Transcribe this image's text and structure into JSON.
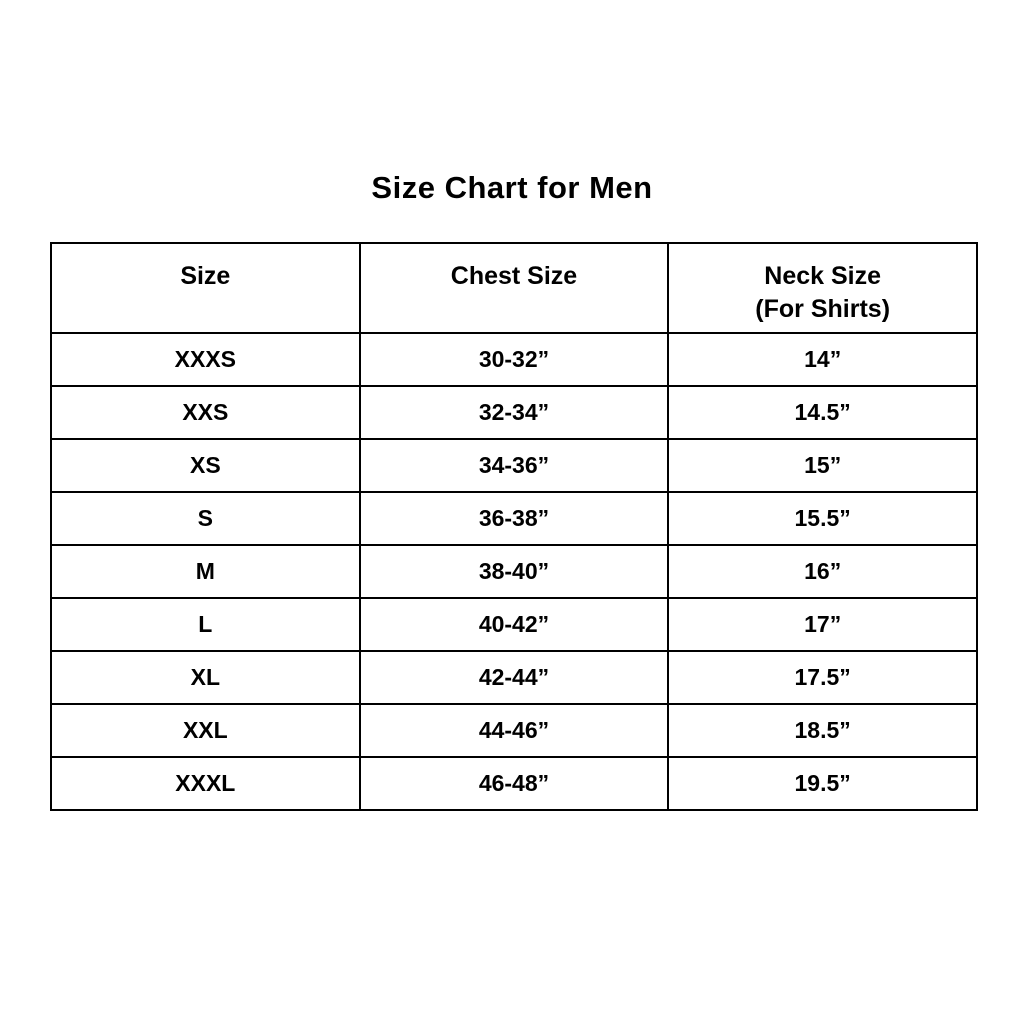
{
  "title": "Size Chart for Men",
  "table": {
    "col_headers": {
      "size": "Size",
      "chest": "Chest Size",
      "neck_line1": "Neck Size",
      "neck_line2": "(For Shirts)"
    },
    "rows": [
      {
        "size": "XXXS",
        "chest": "30-32”",
        "neck": "14”"
      },
      {
        "size": "XXS",
        "chest": "32-34”",
        "neck": "14.5”"
      },
      {
        "size": "XS",
        "chest": "34-36”",
        "neck": "15”"
      },
      {
        "size": "S",
        "chest": "36-38”",
        "neck": "15.5”"
      },
      {
        "size": "M",
        "chest": "38-40”",
        "neck": "16”"
      },
      {
        "size": "L",
        "chest": "40-42”",
        "neck": "17”"
      },
      {
        "size": "XL",
        "chest": "42-44”",
        "neck": "17.5”"
      },
      {
        "size": "XXL",
        "chest": "44-46”",
        "neck": "18.5”"
      },
      {
        "size": "XXXL",
        "chest": "46-48”",
        "neck": "19.5”"
      }
    ]
  },
  "chart_data": {
    "type": "table",
    "title": "Size Chart for Men",
    "columns": [
      "Size",
      "Chest Size",
      "Neck Size (For Shirts)"
    ],
    "rows": [
      [
        "XXXS",
        "30-32”",
        "14”"
      ],
      [
        "XXS",
        "32-34”",
        "14.5”"
      ],
      [
        "XS",
        "34-36”",
        "15”"
      ],
      [
        "S",
        "36-38”",
        "15.5”"
      ],
      [
        "M",
        "38-40”",
        "16”"
      ],
      [
        "L",
        "40-42”",
        "17”"
      ],
      [
        "XL",
        "42-44”",
        "17.5”"
      ],
      [
        "XXL",
        "44-46”",
        "18.5”"
      ],
      [
        "XXXL",
        "46-48”",
        "19.5”"
      ]
    ],
    "layout": {
      "columns_equal_width": true,
      "header_bold": true,
      "grid": true
    }
  }
}
